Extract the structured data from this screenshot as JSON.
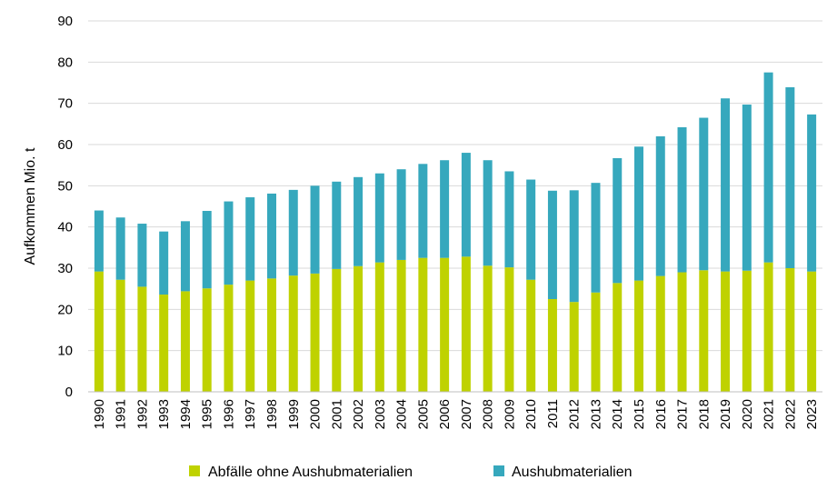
{
  "chart_data": {
    "type": "bar",
    "stacked": true,
    "ylabel": "Aufkommen Mio. t",
    "xlabel": "",
    "ylim": [
      0,
      90
    ],
    "yticks": [
      "0",
      "10",
      "20",
      "30",
      "40",
      "50",
      "60",
      "70",
      "80",
      "90"
    ],
    "grid": true,
    "legend_position": "bottom",
    "categories": [
      "1990",
      "1991",
      "1992",
      "1993",
      "1994",
      "1995",
      "1996",
      "1997",
      "1998",
      "1999",
      "2000",
      "2001",
      "2002",
      "2003",
      "2004",
      "2005",
      "2006",
      "2007",
      "2008",
      "2009",
      "2010",
      "2011",
      "2012",
      "2013",
      "2014",
      "2015",
      "2016",
      "2017",
      "2018",
      "2019",
      "2020",
      "2021",
      "2022",
      "2023"
    ],
    "series": [
      {
        "name": "Abfälle ohne Aushubmaterialien",
        "color": "#bfd200",
        "values": [
          29.2,
          27.2,
          25.5,
          23.6,
          24.4,
          25.1,
          26.0,
          27.0,
          27.5,
          28.2,
          28.7,
          29.8,
          30.5,
          31.4,
          32.0,
          32.5,
          32.5,
          32.8,
          30.6,
          30.2,
          27.2,
          22.5,
          21.8,
          24.1,
          26.4,
          27.0,
          28.1,
          29.0,
          29.5,
          29.2,
          29.4,
          31.4,
          30.0,
          29.2
        ]
      },
      {
        "name": "Aushubmaterialien",
        "color": "#36a8bd",
        "values": [
          14.8,
          15.1,
          15.3,
          15.3,
          17.0,
          18.8,
          20.2,
          20.2,
          20.6,
          20.8,
          21.3,
          21.2,
          21.6,
          21.6,
          22.0,
          22.8,
          23.7,
          25.2,
          25.6,
          23.3,
          24.3,
          26.3,
          27.1,
          26.6,
          30.3,
          32.5,
          33.9,
          35.2,
          37.0,
          42.0,
          40.3,
          46.1,
          43.9,
          38.1
        ]
      }
    ]
  }
}
